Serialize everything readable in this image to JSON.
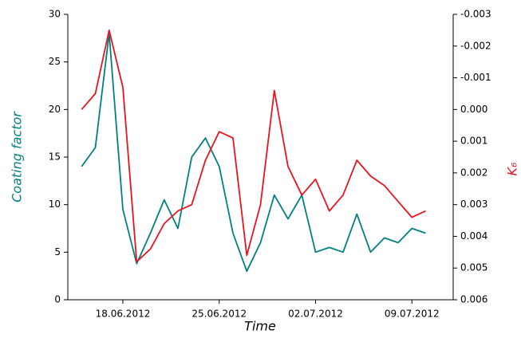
{
  "chart_data": {
    "type": "line",
    "xlabel": "Time",
    "ylabel": "Coating factor",
    "y2label": "K₆",
    "x": [
      "2012-06-15",
      "2012-06-16",
      "2012-06-17",
      "2012-06-18",
      "2012-06-19",
      "2012-06-20",
      "2012-06-21",
      "2012-06-22",
      "2012-06-23",
      "2012-06-24",
      "2012-06-25",
      "2012-06-26",
      "2012-06-27",
      "2012-06-28",
      "2012-06-29",
      "2012-06-30",
      "2012-07-01",
      "2012-07-02",
      "2012-07-03",
      "2012-07-04",
      "2012-07-05",
      "2012-07-06",
      "2012-07-07",
      "2012-07-08",
      "2012-07-09",
      "2012-07-10"
    ],
    "xlim": [
      "2012-06-14",
      "2012-07-12"
    ],
    "xticks": [
      {
        "value": "2012-06-18",
        "label": "18.06.2012"
      },
      {
        "value": "2012-06-25",
        "label": "25.06.2012"
      },
      {
        "value": "2012-07-02",
        "label": "02.07.2012"
      },
      {
        "value": "2012-07-09",
        "label": "09.07.2012"
      }
    ],
    "ylim": [
      0,
      30
    ],
    "yticks": [
      0,
      5,
      10,
      15,
      20,
      25,
      30
    ],
    "y2lim": [
      0.006,
      -0.003
    ],
    "y2ticks": [
      -0.003,
      -0.002,
      -0.001,
      {
        "value": 0,
        "label": "0.000"
      },
      0.001,
      0.002,
      0.003,
      0.004,
      0.005,
      0.006
    ],
    "series": [
      {
        "name": "Coating factor",
        "color": "#008080",
        "values": [
          14,
          16,
          28,
          9.5,
          3.8,
          7,
          10.5,
          7.5,
          15,
          17,
          14,
          7,
          3,
          6,
          11,
          8.5,
          11,
          5,
          5.5,
          5,
          9,
          5,
          6.5,
          6,
          7.5,
          7
        ]
      },
      {
        "name": "K₆",
        "color": "#e8141e",
        "axis": "y2",
        "values": [
          0,
          -0.0005,
          -0.0025,
          -0.0007,
          0.0048,
          0.0044,
          0.0036,
          0.0032,
          0.003,
          0.0016,
          0.0007,
          0.0009,
          0.0046,
          0.003,
          -0.0006,
          0.0018,
          0.0027,
          0.0022,
          0.0032,
          0.0027,
          0.0016,
          0.0021,
          0.0024,
          0.0029,
          0.0034,
          0.0032
        ]
      }
    ]
  }
}
